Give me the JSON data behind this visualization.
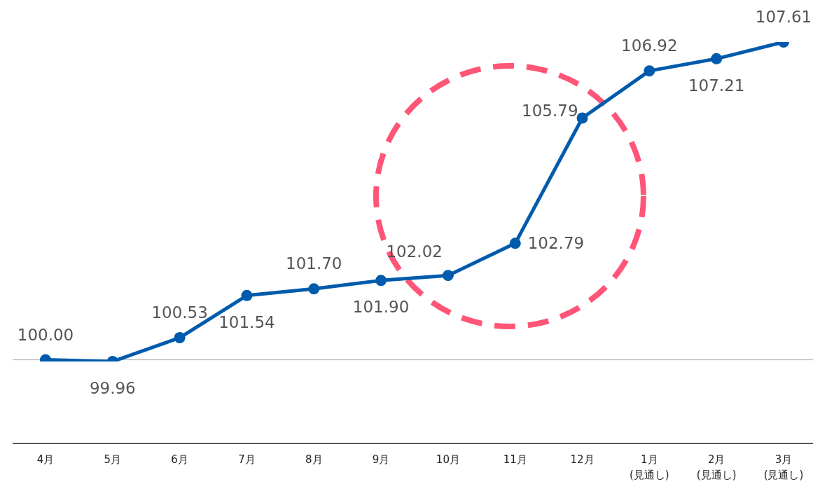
{
  "chart_data": {
    "type": "line",
    "categories": [
      "4月",
      "5月",
      "6月",
      "7月",
      "8月",
      "9月",
      "10月",
      "11月",
      "12月",
      "1月\n(見通し)",
      "2月\n(見通し)",
      "3月\n(見通し)"
    ],
    "series": [
      {
        "color": "#005bac",
        "values": [
          100.0,
          99.96,
          100.53,
          101.54,
          101.7,
          101.9,
          102.02,
          102.79,
          105.79,
          106.92,
          107.21,
          107.61
        ],
        "value_labels": [
          "100.00",
          "99.96",
          "100.53",
          "101.54",
          "101.70",
          "101.90",
          "102.02",
          "102.79",
          "105.79",
          "106.92",
          "107.21",
          "107.61"
        ]
      }
    ],
    "tick_labels": "x",
    "marker": "circle",
    "line_style": "solid",
    "ref_lines": [
      {
        "axis": "y",
        "value": 100,
        "color": "#aaaaaa",
        "line_style": "solid"
      }
    ]
  }
}
